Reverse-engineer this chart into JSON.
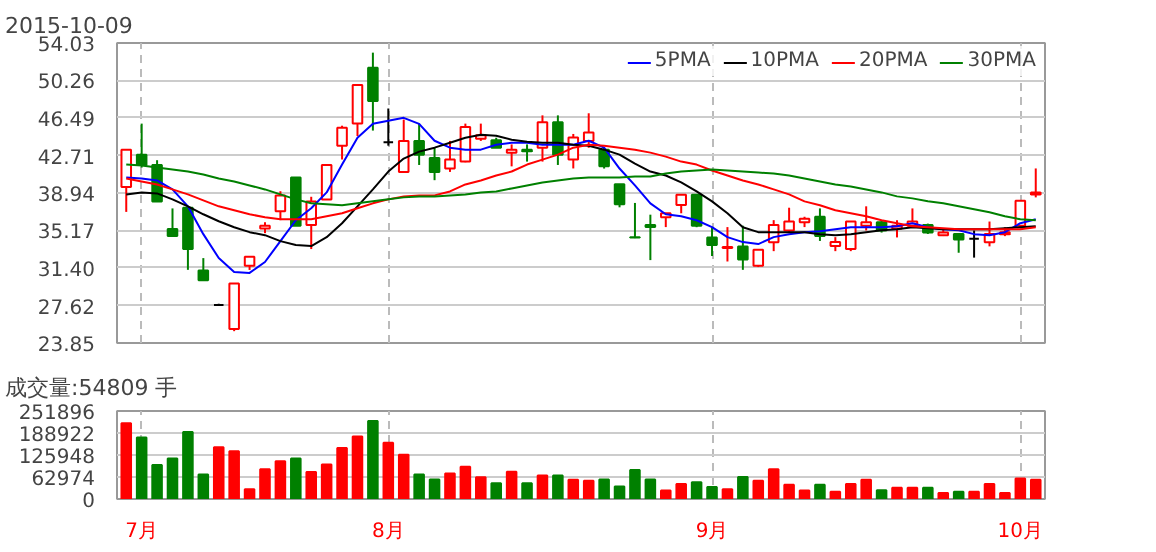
{
  "chart_data": [
    {
      "type": "candlestick",
      "title": "2015-10-09",
      "categories": [
        null,
        null,
        null,
        null,
        null,
        null,
        null,
        null,
        null,
        null,
        null,
        null,
        null,
        null,
        null,
        null,
        null,
        null,
        null,
        null,
        null,
        null,
        null,
        null,
        null,
        null,
        null,
        null,
        null,
        null,
        null,
        null,
        null,
        null,
        null,
        null,
        null,
        null,
        null,
        null,
        null,
        null,
        null,
        null,
        null,
        null,
        null,
        null,
        null,
        null,
        null,
        null,
        null,
        null,
        null,
        null,
        null,
        null,
        null,
        null
      ],
      "ohlc": [
        [
          39.54,
          43.28,
          37.04,
          43.28
        ],
        [
          42.8,
          45.92,
          41.5,
          41.76
        ],
        [
          41.76,
          42.24,
          38.08,
          38.08
        ],
        [
          35.31,
          37.39,
          34.61,
          34.61
        ],
        [
          37.46,
          37.46,
          31.21,
          33.3
        ],
        [
          31.15,
          32.39,
          30.17,
          30.17
        ],
        [
          27.68,
          27.8,
          27.6,
          27.68
        ],
        [
          25.25,
          29.83,
          25.04,
          29.83
        ],
        [
          31.63,
          32.53,
          31.2,
          32.53
        ],
        [
          35.38,
          36.0,
          34.9,
          35.65
        ],
        [
          37.11,
          39.12,
          36.21,
          38.7
        ],
        [
          40.51,
          40.51,
          35.65,
          35.65
        ],
        [
          35.72,
          38.56,
          33.3,
          38.08
        ],
        [
          38.29,
          41.76,
          38.29,
          41.76
        ],
        [
          43.7,
          45.71,
          42.31,
          45.5
        ],
        [
          45.92,
          49.8,
          44.67,
          49.8
        ],
        [
          51.53,
          53.06,
          45.22,
          48.2
        ],
        [
          44.04,
          47.44,
          43.7,
          44.04
        ],
        [
          41.06,
          46.33,
          41.06,
          44.18
        ],
        [
          44.18,
          45.92,
          41.76,
          42.8
        ],
        [
          42.45,
          43.49,
          40.23,
          41.06
        ],
        [
          41.41,
          44.18,
          41.06,
          42.31
        ],
        [
          42.1,
          45.92,
          42.03,
          45.57
        ],
        [
          44.39,
          45.92,
          44.18,
          44.74
        ],
        [
          44.25,
          44.5,
          43.49,
          43.49
        ],
        [
          43.0,
          43.83,
          41.62,
          43.28
        ],
        [
          43.28,
          43.83,
          42.1,
          43.14
        ],
        [
          43.49,
          46.75,
          42.1,
          46.06
        ],
        [
          46.06,
          46.75,
          41.76,
          42.8
        ],
        [
          42.31,
          44.88,
          41.41,
          44.53
        ],
        [
          44.18,
          46.96,
          43.49,
          45.02
        ],
        [
          43.28,
          43.49,
          41.4,
          41.62
        ],
        [
          39.81,
          39.81,
          37.5,
          37.8
        ],
        [
          34.5,
          37.94,
          34.4,
          34.47
        ],
        [
          35.72,
          36.76,
          32.19,
          35.51
        ],
        [
          36.5,
          36.9,
          35.51,
          36.9
        ],
        [
          37.73,
          38.77,
          36.9,
          38.77
        ],
        [
          38.77,
          38.77,
          35.5,
          35.65
        ],
        [
          34.47,
          35.51,
          32.6,
          33.71
        ],
        [
          33.4,
          35.51,
          32.05,
          33.5
        ],
        [
          33.57,
          35.65,
          31.21,
          32.25
        ],
        [
          31.63,
          33.23,
          31.49,
          33.23
        ],
        [
          33.99,
          36.21,
          33.09,
          35.72
        ],
        [
          35.17,
          37.46,
          34.96,
          36.07
        ],
        [
          36.0,
          36.55,
          35.51,
          36.35
        ],
        [
          36.55,
          37.39,
          34.12,
          34.61
        ],
        [
          33.6,
          34.5,
          33.09,
          34.0
        ],
        [
          33.3,
          36.07,
          33.09,
          36.07
        ],
        [
          35.65,
          37.6,
          35.17,
          36.0
        ],
        [
          36.0,
          36.2,
          34.96,
          35.17
        ],
        [
          35.38,
          36.2,
          34.47,
          35.65
        ],
        [
          35.65,
          37.39,
          35.51,
          36.07
        ],
        [
          35.72,
          35.86,
          34.82,
          34.96
        ],
        [
          34.7,
          35.31,
          34.61,
          34.96
        ],
        [
          34.82,
          34.82,
          32.93,
          34.26
        ],
        [
          34.33,
          35.17,
          32.44,
          34.33
        ],
        [
          33.99,
          36.07,
          33.57,
          34.82
        ],
        [
          34.8,
          35.5,
          34.6,
          35.0
        ],
        [
          35.65,
          38.15,
          35.51,
          38.15
        ],
        [
          38.8,
          41.41,
          38.5,
          39.0
        ]
      ],
      "colors": [
        "#ff0000",
        "#008000",
        "#008000",
        "#008000",
        "#008000",
        "#008000",
        "#000000",
        "#ff0000",
        "#ff0000",
        "#ff0000",
        "#ff0000",
        "#008000",
        "#ff0000",
        "#ff0000",
        "#ff0000",
        "#ff0000",
        "#008000",
        "#000000",
        "#ff0000",
        "#008000",
        "#008000",
        "#ff0000",
        "#ff0000",
        "#ff0000",
        "#008000",
        "#ff0000",
        "#008000",
        "#ff0000",
        "#008000",
        "#ff0000",
        "#ff0000",
        "#008000",
        "#008000",
        "#008000",
        "#008000",
        "#ff0000",
        "#ff0000",
        "#008000",
        "#008000",
        "#ff0000",
        "#008000",
        "#ff0000",
        "#ff0000",
        "#ff0000",
        "#ff0000",
        "#008000",
        "#ff0000",
        "#ff0000",
        "#ff0000",
        "#008000",
        "#ff0000",
        "#ff0000",
        "#008000",
        "#ff0000",
        "#008000",
        "#000000",
        "#ff0000",
        "#ff0000",
        "#ff0000",
        "#ff0000"
      ],
      "series": [
        {
          "name": "5PMA",
          "type": "line",
          "color": "#0000ff",
          "values": [
            40.5,
            40.4,
            40.2,
            39.3,
            37.6,
            34.8,
            32.4,
            31.0,
            30.9,
            32.0,
            34.1,
            36.2,
            37.4,
            39.0,
            41.8,
            44.5,
            45.9,
            46.2,
            46.5,
            45.9,
            44.2,
            43.5,
            43.3,
            43.3,
            43.8,
            44.0,
            44.0,
            43.8,
            43.8,
            43.8,
            44.2,
            43.5,
            41.4,
            39.7,
            37.9,
            36.8,
            36.6,
            36.2,
            35.5,
            34.5,
            34.0,
            33.8,
            34.5,
            34.8,
            35.0,
            35.1,
            35.3,
            35.5,
            35.5,
            35.5,
            35.6,
            35.9,
            35.5,
            35.3,
            35.2,
            34.8,
            34.7,
            35.0,
            35.9,
            36.3
          ]
        },
        {
          "name": "10PMA",
          "type": "line",
          "color": "#000000",
          "values": [
            38.8,
            39.0,
            38.9,
            38.3,
            37.6,
            36.8,
            36.1,
            35.5,
            35.0,
            34.7,
            34.1,
            33.7,
            33.6,
            34.5,
            35.9,
            37.6,
            39.3,
            41.1,
            42.4,
            43.1,
            43.5,
            44.0,
            44.5,
            44.8,
            44.7,
            44.3,
            44.1,
            44.0,
            44.0,
            43.8,
            43.7,
            43.3,
            42.8,
            41.9,
            41.1,
            40.7,
            40.0,
            39.1,
            38.1,
            36.9,
            35.5,
            35.0,
            35.0,
            35.0,
            35.0,
            34.8,
            34.7,
            34.8,
            35.0,
            35.2,
            35.3,
            35.5,
            35.4,
            35.3,
            35.3,
            35.3,
            35.3,
            35.4,
            35.5,
            35.6
          ]
        },
        {
          "name": "20PMA",
          "type": "line",
          "color": "#ff0000",
          "values": [
            40.4,
            40.1,
            39.8,
            39.3,
            38.8,
            38.2,
            37.6,
            37.2,
            36.8,
            36.5,
            36.3,
            36.3,
            36.3,
            36.6,
            36.9,
            37.4,
            37.9,
            38.3,
            38.6,
            38.7,
            38.7,
            39.1,
            39.8,
            40.2,
            40.7,
            41.1,
            41.8,
            42.3,
            42.8,
            43.5,
            43.8,
            43.7,
            43.5,
            43.3,
            43.0,
            42.6,
            42.1,
            41.8,
            41.2,
            40.7,
            40.2,
            39.8,
            39.3,
            38.8,
            38.1,
            37.7,
            37.2,
            36.9,
            36.6,
            36.2,
            35.9,
            35.6,
            35.5,
            35.4,
            35.3,
            35.3,
            35.3,
            35.3,
            35.3,
            35.5
          ]
        },
        {
          "name": "30PMA",
          "type": "line",
          "color": "#008000",
          "values": [
            41.8,
            41.7,
            41.5,
            41.3,
            41.1,
            40.8,
            40.4,
            40.1,
            39.7,
            39.3,
            38.8,
            38.3,
            37.9,
            37.8,
            37.7,
            37.9,
            38.1,
            38.3,
            38.5,
            38.6,
            38.6,
            38.7,
            38.8,
            39.0,
            39.1,
            39.4,
            39.7,
            40.0,
            40.2,
            40.4,
            40.5,
            40.5,
            40.5,
            40.6,
            40.6,
            40.9,
            41.1,
            41.2,
            41.3,
            41.2,
            41.1,
            41.0,
            40.9,
            40.7,
            40.4,
            40.1,
            39.8,
            39.6,
            39.3,
            39.0,
            38.6,
            38.4,
            38.1,
            37.9,
            37.6,
            37.3,
            37.0,
            36.6,
            36.3,
            36.2
          ]
        }
      ],
      "ylim": [
        23.85,
        54.03
      ],
      "yticks": [
        23.85,
        27.62,
        {
          "value": 31.4,
          "label": "31.40"
        },
        35.17,
        38.94,
        42.71,
        46.49,
        50.26,
        54.03
      ],
      "grid": true,
      "legend": "top right",
      "tick_labels": "y"
    },
    {
      "type": "bar",
      "title": "成交量:54809 手",
      "categories": [
        null,
        "7月",
        null,
        null,
        null,
        null,
        null,
        null,
        null,
        null,
        null,
        null,
        null,
        null,
        null,
        null,
        null,
        "8月",
        null,
        null,
        null,
        null,
        null,
        null,
        null,
        null,
        null,
        null,
        null,
        null,
        null,
        null,
        null,
        null,
        null,
        null,
        null,
        null,
        "9月",
        null,
        null,
        null,
        null,
        null,
        null,
        null,
        null,
        null,
        null,
        null,
        null,
        null,
        null,
        null,
        null,
        null,
        null,
        null,
        "10月",
        null
      ],
      "values": [
        217000,
        176000,
        97000,
        116000,
        192000,
        70000,
        148000,
        137000,
        28000,
        85000,
        108000,
        116000,
        77000,
        99000,
        146000,
        179000,
        223000,
        161000,
        127000,
        70000,
        56000,
        73000,
        92000,
        62000,
        45000,
        78000,
        45000,
        67000,
        67000,
        55000,
        52000,
        56000,
        36000,
        83000,
        56000,
        24000,
        43000,
        48000,
        34000,
        28000,
        63000,
        52000,
        85000,
        41000,
        24000,
        41000,
        21000,
        43000,
        55000,
        25000,
        32000,
        32000,
        32000,
        17000,
        21000,
        21000,
        43000,
        17000,
        59000,
        55000
      ],
      "colors": [
        "#ff0000",
        "#008000",
        "#008000",
        "#008000",
        "#008000",
        "#008000",
        "#ff0000",
        "#ff0000",
        "#ff0000",
        "#ff0000",
        "#ff0000",
        "#008000",
        "#ff0000",
        "#ff0000",
        "#ff0000",
        "#ff0000",
        "#008000",
        "#ff0000",
        "#ff0000",
        "#008000",
        "#008000",
        "#ff0000",
        "#ff0000",
        "#ff0000",
        "#008000",
        "#ff0000",
        "#008000",
        "#ff0000",
        "#008000",
        "#ff0000",
        "#ff0000",
        "#008000",
        "#008000",
        "#008000",
        "#008000",
        "#ff0000",
        "#ff0000",
        "#008000",
        "#008000",
        "#ff0000",
        "#008000",
        "#ff0000",
        "#ff0000",
        "#ff0000",
        "#ff0000",
        "#008000",
        "#ff0000",
        "#ff0000",
        "#ff0000",
        "#008000",
        "#ff0000",
        "#ff0000",
        "#008000",
        "#ff0000",
        "#008000",
        "#ff0000",
        "#ff0000",
        "#ff0000",
        "#ff0000",
        "#ff0000"
      ],
      "ylim": [
        0,
        251896
      ],
      "yticks": [
        0,
        62974,
        125948,
        188922,
        251896
      ],
      "grid": true
    }
  ]
}
